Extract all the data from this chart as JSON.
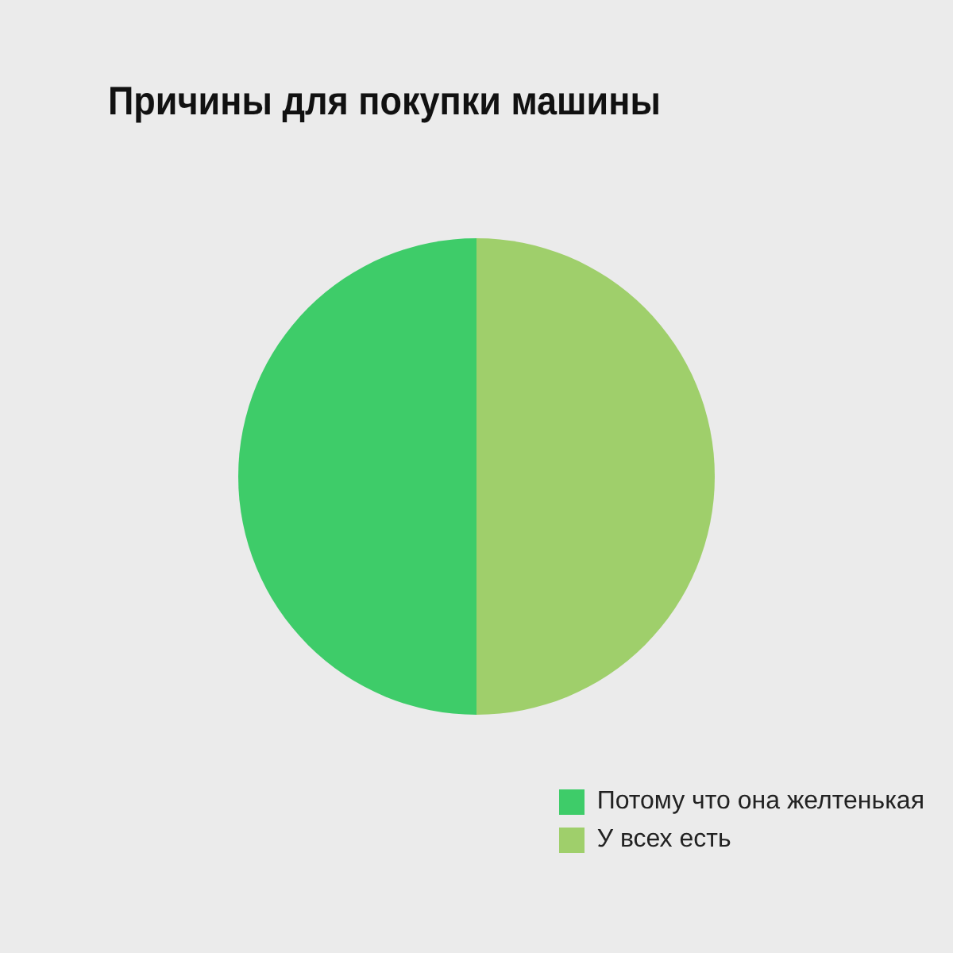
{
  "chart_data": {
    "type": "pie",
    "title": "Причины для покупки машины",
    "categories": [
      "Потому что она желтенькая",
      "У всех есть"
    ],
    "values": [
      50,
      50
    ],
    "colors": [
      "#3ecc69",
      "#9fcf6b"
    ],
    "legend": "bottom right"
  }
}
